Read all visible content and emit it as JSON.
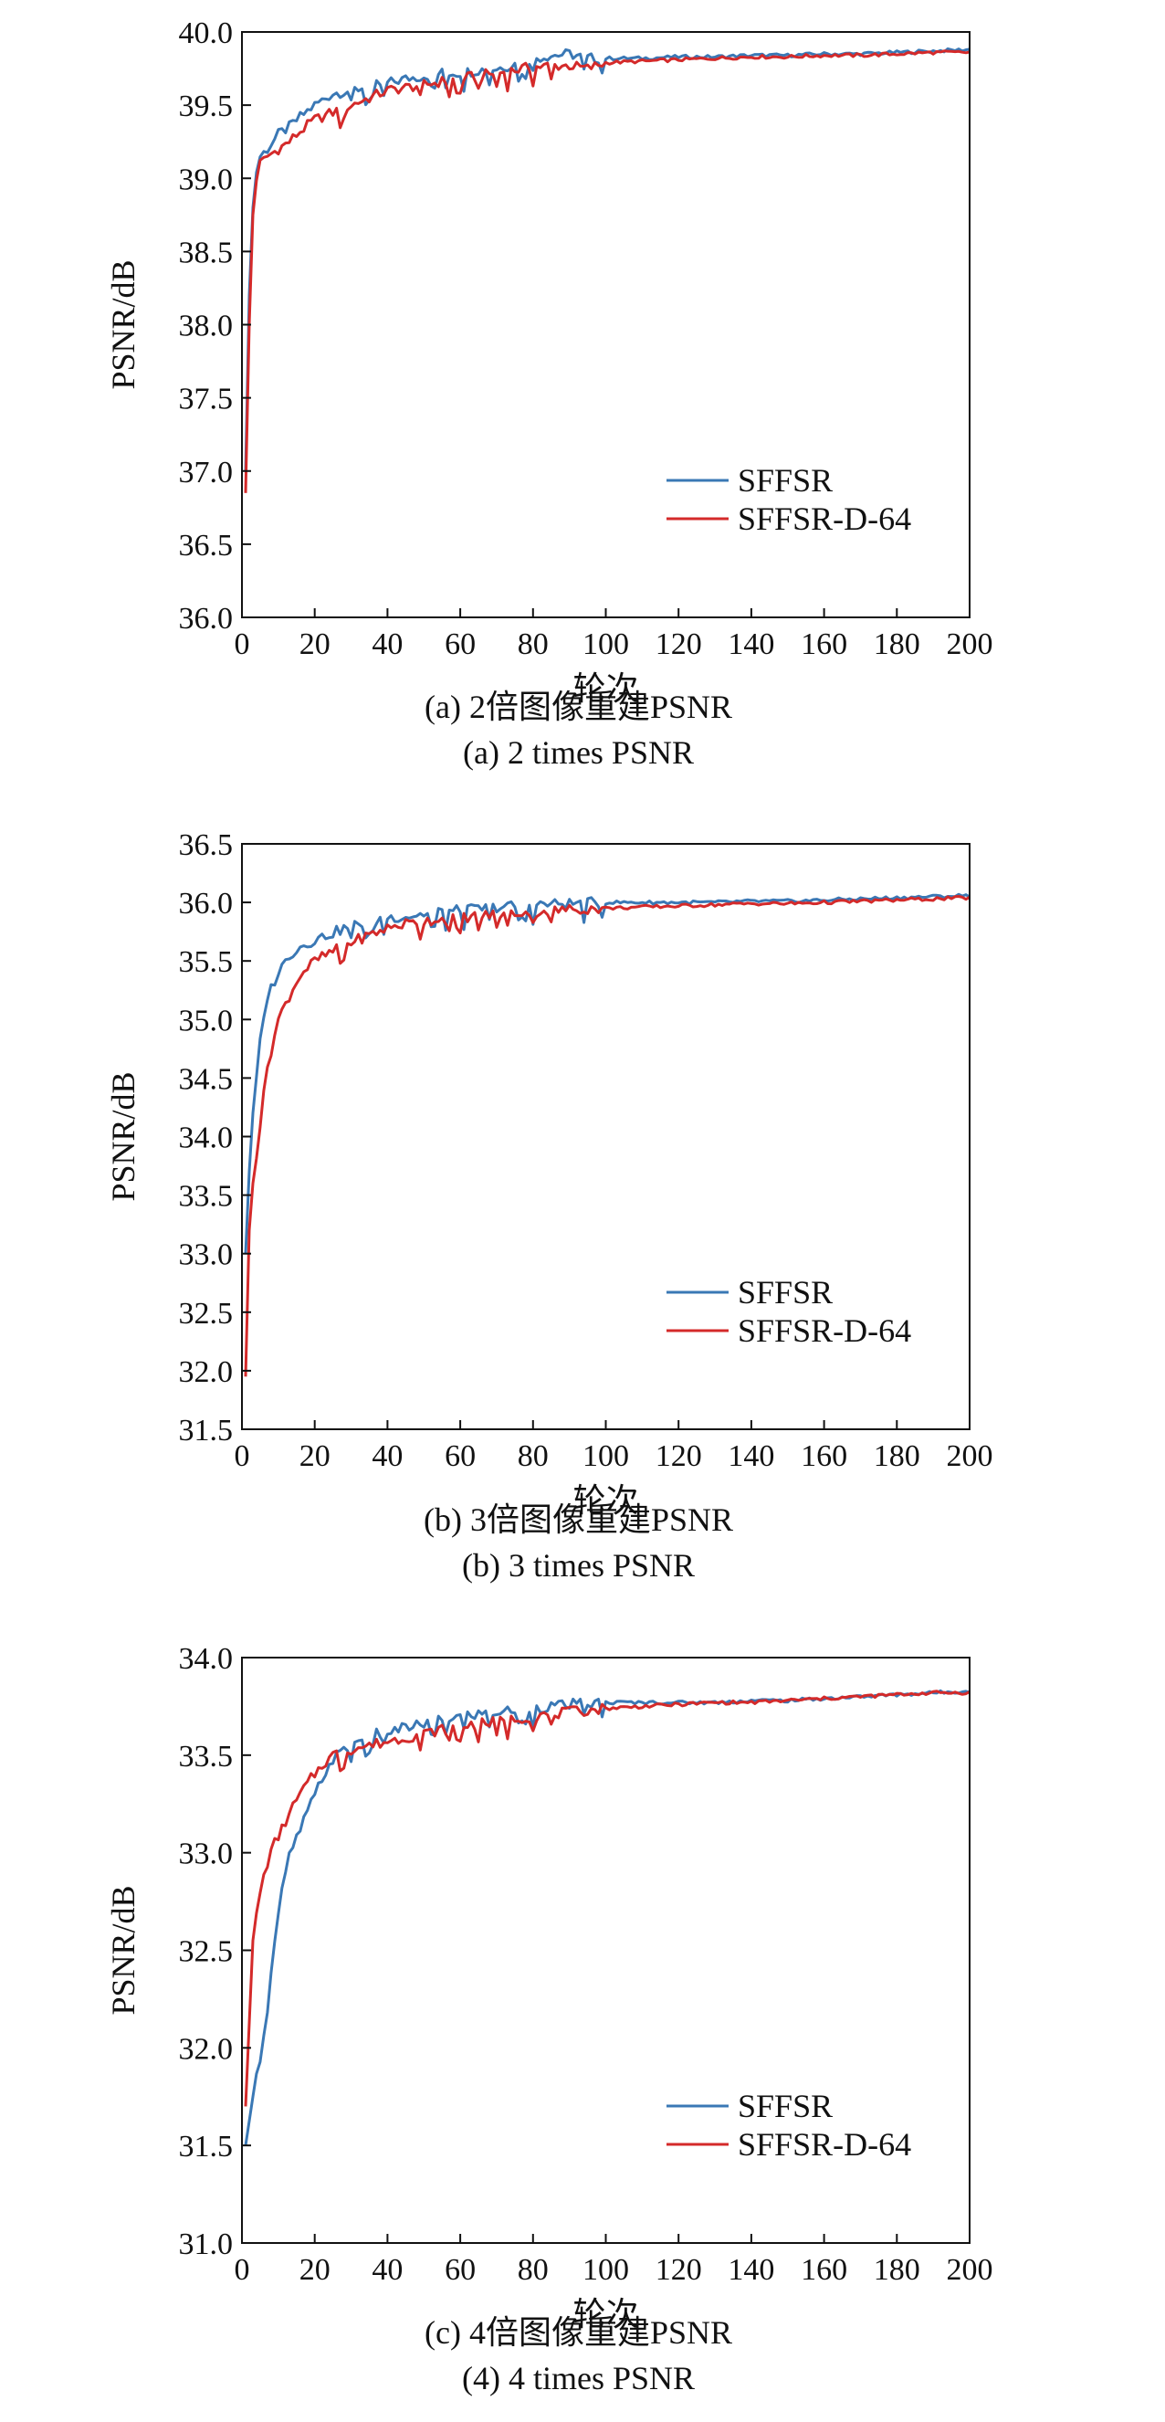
{
  "colors": {
    "series1": "#3a78b5",
    "series2": "#d42a2a"
  },
  "chart_data": [
    {
      "type": "line",
      "xlabel": "轮次",
      "ylabel": "PSNR/dB",
      "caption_cn": "(a) 2倍图像重建PSNR",
      "caption_en": "(a) 2 times PSNR",
      "xlim": [
        0,
        200
      ],
      "ylim": [
        36.0,
        40.0
      ],
      "xticks": [
        "0",
        "20",
        "40",
        "60",
        "80",
        "100",
        "120",
        "140",
        "160",
        "180",
        "200"
      ],
      "yticks": [
        "36.0",
        "36.5",
        "37.0",
        "37.5",
        "38.0",
        "38.5",
        "39.0",
        "39.5",
        "40.0"
      ],
      "legend_position": "lower-right",
      "series": [
        {
          "name": "SFFSR",
          "x": [
            1,
            2,
            3,
            4,
            5,
            7,
            10,
            13,
            16,
            20,
            25,
            30,
            35,
            40,
            45,
            50,
            55,
            60,
            65,
            70,
            75,
            80,
            85,
            90,
            95,
            100,
            110,
            120,
            130,
            140,
            150,
            160,
            170,
            180,
            190,
            200
          ],
          "y": [
            37.0,
            38.2,
            38.8,
            39.05,
            39.15,
            39.2,
            39.3,
            39.35,
            39.42,
            39.5,
            39.58,
            39.6,
            39.63,
            39.65,
            39.68,
            39.7,
            39.72,
            39.72,
            39.74,
            39.75,
            39.78,
            39.82,
            39.84,
            39.85,
            39.82,
            39.82,
            39.82,
            39.83,
            39.83,
            39.84,
            39.84,
            39.85,
            39.85,
            39.86,
            39.87,
            39.88
          ]
        },
        {
          "name": "SFFSR-D-64",
          "x": [
            1,
            2,
            3,
            4,
            5,
            7,
            10,
            13,
            16,
            20,
            25,
            30,
            35,
            40,
            45,
            50,
            55,
            60,
            65,
            70,
            75,
            80,
            85,
            90,
            95,
            100,
            110,
            120,
            130,
            140,
            150,
            160,
            170,
            180,
            190,
            200
          ],
          "y": [
            36.85,
            38.0,
            38.75,
            39.0,
            39.1,
            39.15,
            39.2,
            39.25,
            39.32,
            39.4,
            39.45,
            39.5,
            39.55,
            39.6,
            39.62,
            39.64,
            39.66,
            39.68,
            39.7,
            39.72,
            39.74,
            39.76,
            39.77,
            39.77,
            39.75,
            39.79,
            39.8,
            39.81,
            39.82,
            39.83,
            39.83,
            39.84,
            39.84,
            39.85,
            39.86,
            39.86
          ]
        }
      ]
    },
    {
      "type": "line",
      "xlabel": "轮次",
      "ylabel": "PSNR/dB",
      "caption_cn": "(b) 3倍图像重建PSNR",
      "caption_en": "(b) 3 times PSNR",
      "xlim": [
        0,
        200
      ],
      "ylim": [
        31.5,
        36.5
      ],
      "xticks": [
        "0",
        "20",
        "40",
        "60",
        "80",
        "100",
        "120",
        "140",
        "160",
        "180",
        "200"
      ],
      "yticks": [
        "31.5",
        "32.0",
        "32.5",
        "33.0",
        "33.5",
        "34.0",
        "34.5",
        "35.0",
        "35.5",
        "36.0",
        "36.5"
      ],
      "legend_position": "lower-right",
      "series": [
        {
          "name": "SFFSR",
          "x": [
            1,
            2,
            3,
            5,
            7,
            10,
            13,
            16,
            20,
            25,
            30,
            35,
            40,
            45,
            50,
            55,
            60,
            70,
            80,
            90,
            100,
            110,
            120,
            130,
            140,
            150,
            160,
            170,
            180,
            190,
            200
          ],
          "y": [
            33.0,
            33.7,
            34.2,
            34.8,
            35.2,
            35.4,
            35.55,
            35.62,
            35.68,
            35.74,
            35.8,
            35.84,
            35.87,
            35.88,
            35.9,
            35.92,
            35.93,
            35.96,
            35.98,
            35.99,
            36.0,
            36.0,
            36.0,
            36.0,
            36.01,
            36.01,
            36.02,
            36.03,
            36.04,
            36.05,
            36.06
          ]
        },
        {
          "name": "SFFSR-D-64",
          "x": [
            1,
            2,
            3,
            5,
            7,
            10,
            13,
            16,
            20,
            25,
            30,
            35,
            40,
            45,
            50,
            55,
            60,
            70,
            80,
            90,
            100,
            110,
            120,
            130,
            140,
            150,
            160,
            170,
            180,
            190,
            200
          ],
          "y": [
            31.95,
            33.2,
            33.6,
            34.1,
            34.6,
            35.0,
            35.2,
            35.38,
            35.5,
            35.58,
            35.66,
            35.72,
            35.78,
            35.82,
            35.84,
            35.86,
            35.87,
            35.9,
            35.92,
            35.94,
            35.95,
            35.96,
            35.97,
            35.98,
            35.99,
            35.99,
            36.0,
            36.01,
            36.02,
            36.03,
            36.04
          ]
        }
      ]
    },
    {
      "type": "line",
      "xlabel": "轮次",
      "ylabel": "PSNR/dB",
      "caption_cn": "(c) 4倍图像重建PSNR",
      "caption_en": "(4) 4 times PSNR",
      "xlim": [
        0,
        200
      ],
      "ylim": [
        31.0,
        34.0
      ],
      "xticks": [
        "0",
        "20",
        "40",
        "60",
        "80",
        "100",
        "120",
        "140",
        "160",
        "180",
        "200"
      ],
      "yticks": [
        "31.0",
        "31.5",
        "32.0",
        "32.5",
        "33.0",
        "33.5",
        "34.0"
      ],
      "legend_position": "lower-right",
      "series": [
        {
          "name": "SFFSR",
          "x": [
            1,
            3,
            5,
            7,
            9,
            11,
            13,
            16,
            19,
            22,
            25,
            30,
            35,
            40,
            45,
            50,
            55,
            60,
            70,
            80,
            90,
            100,
            110,
            120,
            130,
            140,
            150,
            160,
            170,
            180,
            190,
            200
          ],
          "y": [
            31.5,
            31.75,
            31.95,
            32.2,
            32.55,
            32.8,
            32.98,
            33.12,
            33.25,
            33.38,
            33.48,
            33.55,
            33.6,
            33.62,
            33.64,
            33.66,
            33.68,
            33.7,
            33.72,
            33.74,
            33.76,
            33.77,
            33.77,
            33.77,
            33.77,
            33.78,
            33.78,
            33.79,
            33.8,
            33.81,
            33.82,
            33.83
          ]
        },
        {
          "name": "SFFSR-D-64",
          "x": [
            1,
            3,
            5,
            7,
            9,
            11,
            13,
            16,
            19,
            22,
            25,
            30,
            35,
            40,
            45,
            50,
            55,
            60,
            70,
            80,
            90,
            100,
            110,
            120,
            130,
            140,
            150,
            160,
            170,
            180,
            190,
            200
          ],
          "y": [
            31.7,
            32.55,
            32.8,
            32.95,
            33.05,
            33.12,
            33.2,
            33.3,
            33.38,
            33.45,
            33.5,
            33.53,
            33.55,
            33.57,
            33.59,
            33.61,
            33.63,
            33.65,
            33.67,
            33.7,
            33.72,
            33.74,
            33.75,
            33.76,
            33.77,
            33.77,
            33.78,
            33.79,
            33.8,
            33.81,
            33.82,
            33.82
          ]
        }
      ]
    }
  ]
}
